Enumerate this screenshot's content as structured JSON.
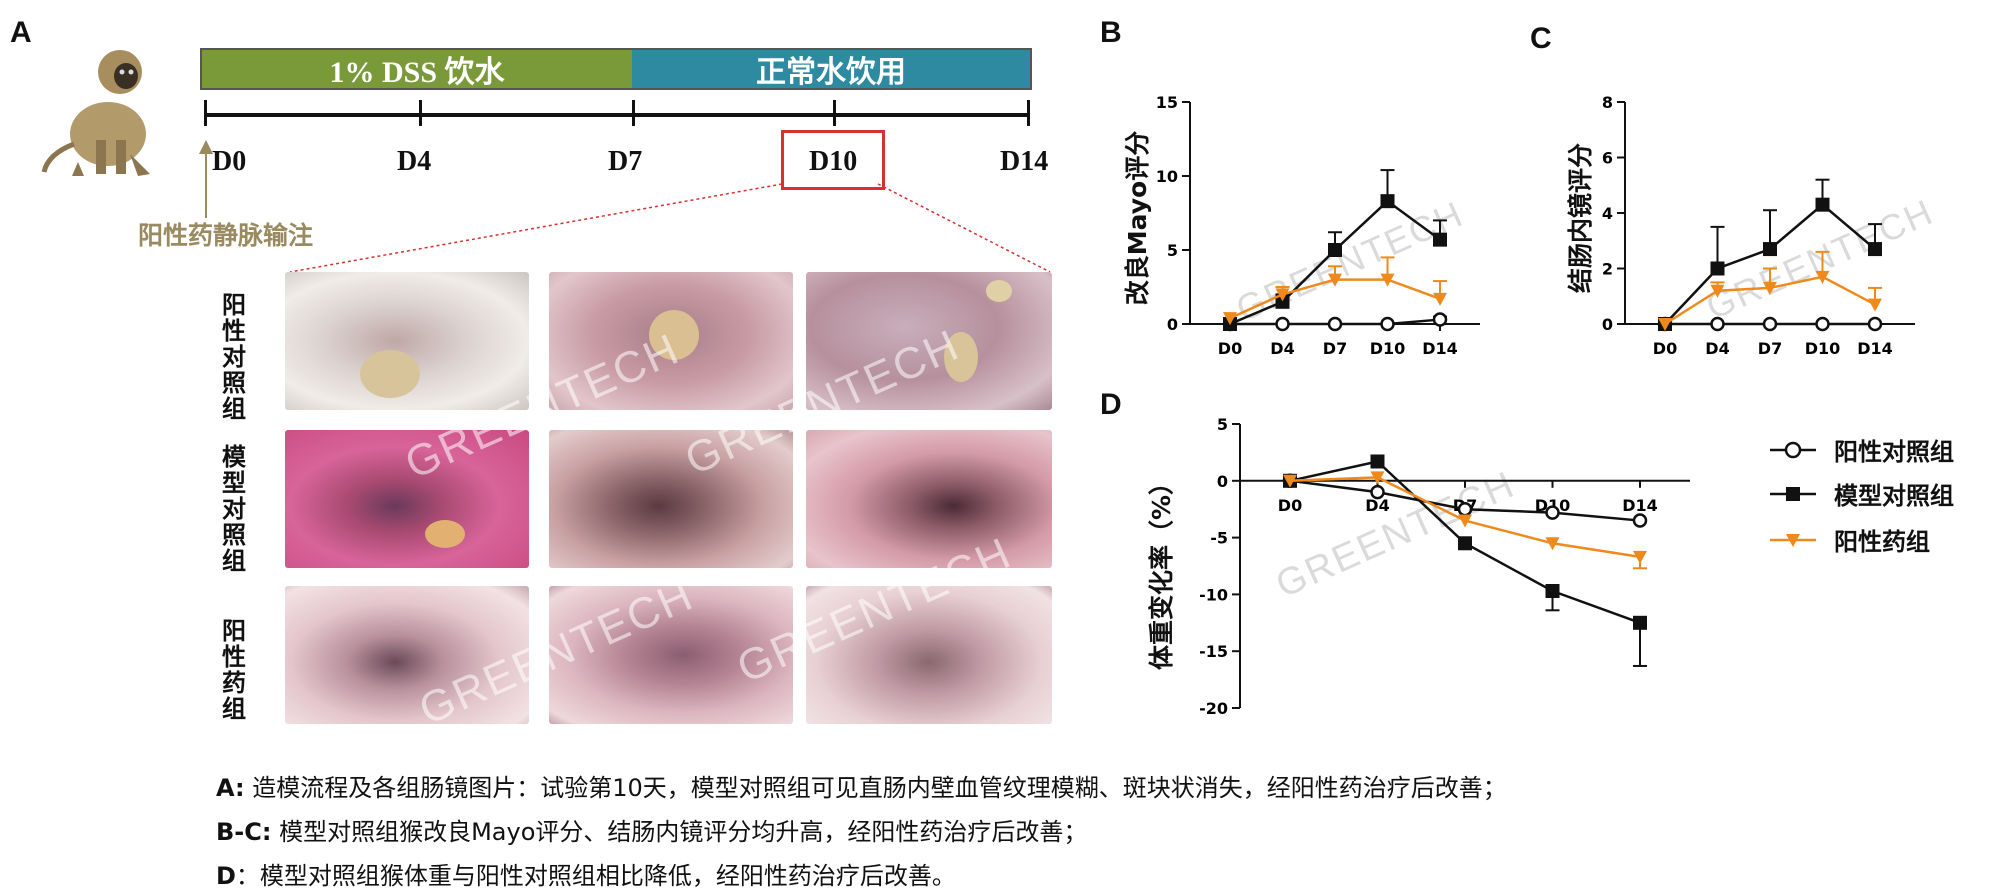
{
  "panel_letters": {
    "a": "A",
    "b": "B",
    "c": "C",
    "d": "D"
  },
  "timeline": {
    "phase1": "1% DSS 饮水",
    "phase2": "正常水饮用",
    "days": [
      "D0",
      "D4",
      "D7",
      "D10",
      "D14"
    ],
    "injection_label": "阳性药静脉输注",
    "colors": {
      "phase1": "#7a9a3a",
      "phase2": "#2e8aa0",
      "highlight": "#d83030",
      "injection": "#9a8a60"
    }
  },
  "groups": {
    "neg": "阳性对照组",
    "model": "模型对照组",
    "pos": "阳性药组"
  },
  "watermark": "GREENTECH",
  "chart_data": [
    {
      "panel": "B",
      "type": "line",
      "ylabel": "改良Mayo评分",
      "categories": [
        "D0",
        "D4",
        "D7",
        "D10",
        "D14"
      ],
      "ylim": [
        0,
        15
      ],
      "yticks": [
        0,
        5,
        10,
        15
      ],
      "series": [
        {
          "name": "阳性对照组",
          "values": [
            0,
            0,
            0,
            0,
            0.3
          ],
          "err": [
            0,
            0,
            0,
            0,
            0.2
          ],
          "color": "#111111",
          "marker": "circle-open"
        },
        {
          "name": "模型对照组",
          "values": [
            0,
            1.5,
            5,
            8.3,
            5.7
          ],
          "err": [
            0,
            0.5,
            1.2,
            2.1,
            1.3
          ],
          "color": "#111111",
          "marker": "square"
        },
        {
          "name": "阳性药组",
          "values": [
            0.4,
            2,
            3,
            3,
            1.7
          ],
          "err": [
            0,
            0.5,
            0.9,
            1.5,
            1.2
          ],
          "color": "#ee8a1c",
          "marker": "triangle-down"
        }
      ]
    },
    {
      "panel": "C",
      "type": "line",
      "ylabel": "结肠内镜评分",
      "categories": [
        "D0",
        "D4",
        "D7",
        "D10",
        "D14"
      ],
      "ylim": [
        0,
        8
      ],
      "yticks": [
        0,
        2,
        4,
        6,
        8
      ],
      "series": [
        {
          "name": "阳性对照组",
          "values": [
            0,
            0,
            0,
            0,
            0
          ],
          "err": [
            0,
            0,
            0,
            0,
            0
          ],
          "color": "#111111",
          "marker": "circle-open"
        },
        {
          "name": "模型对照组",
          "values": [
            0,
            2,
            2.7,
            4.3,
            2.7
          ],
          "err": [
            0,
            1.5,
            1.4,
            0.9,
            0.9
          ],
          "color": "#111111",
          "marker": "square"
        },
        {
          "name": "阳性药组",
          "values": [
            0,
            1.2,
            1.3,
            1.7,
            0.7
          ],
          "err": [
            0,
            0.3,
            0.7,
            0.9,
            0.6
          ],
          "color": "#ee8a1c",
          "marker": "triangle-down"
        }
      ]
    },
    {
      "panel": "D",
      "type": "line",
      "ylabel": "体重变化率（%）",
      "categories": [
        "D0",
        "D4",
        "D7",
        "D10",
        "D14"
      ],
      "ylim": [
        -20,
        5
      ],
      "yticks": [
        5,
        0,
        -5,
        -10,
        -15,
        -20
      ],
      "series": [
        {
          "name": "阳性对照组",
          "values": [
            0,
            -1,
            -2.5,
            -2.8,
            -3.5
          ],
          "err": [
            0,
            0,
            0,
            0,
            0
          ],
          "color": "#111111",
          "marker": "circle-open"
        },
        {
          "name": "模型对照组",
          "values": [
            0,
            1.7,
            -5.5,
            -9.7,
            -12.5
          ],
          "err": [
            0,
            0,
            0,
            1.7,
            3.8
          ],
          "color": "#111111",
          "marker": "square"
        },
        {
          "name": "阳性药组",
          "values": [
            0,
            0.3,
            -3.5,
            -5.5,
            -6.7
          ],
          "err": [
            0,
            0,
            0,
            0,
            1
          ],
          "color": "#ee8a1c",
          "marker": "triangle-down"
        }
      ]
    }
  ],
  "captions": [
    {
      "tag": "A:",
      "text": " 造模流程及各组肠镜图片：试验第10天，模型对照组可见直肠内壁血管纹理模糊、斑块状消失，经阳性药治疗后改善；"
    },
    {
      "tag": "B-C:",
      "text": " 模型对照组猴改良Mayo评分、结肠内镜评分均升高，经阳性药治疗后改善；"
    },
    {
      "tag": "D",
      "text": "：模型对照组猴体重与阳性对照组相比降低，经阳性药治疗后改善。"
    }
  ]
}
